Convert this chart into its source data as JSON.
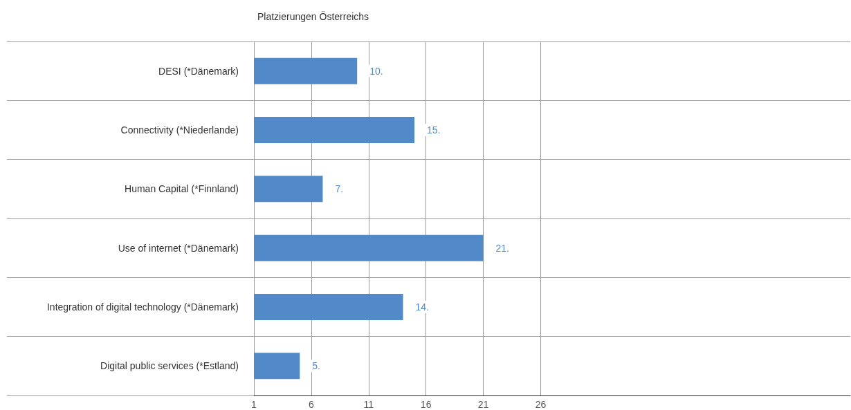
{
  "chart_data": {
    "type": "bar",
    "orientation": "horizontal",
    "title": "Platzierungen Österreichs",
    "categories": [
      "DESI (*Dänemark)",
      "Connectivity (*Niederlande)",
      "Human Capital (*Finnland)",
      "Use of internet (*Dänemark)",
      "Integration of digital technology (*Dänemark)",
      "Digital public services (*Estland)"
    ],
    "values": [
      10,
      15,
      7,
      21,
      14,
      5
    ],
    "value_labels": [
      "10.",
      "15.",
      "7.",
      "21.",
      "14.",
      "5."
    ],
    "color": "#5289c9",
    "xlim": [
      1,
      53
    ],
    "xticks": [
      1,
      6,
      11,
      16,
      21,
      26
    ],
    "grid": true
  }
}
